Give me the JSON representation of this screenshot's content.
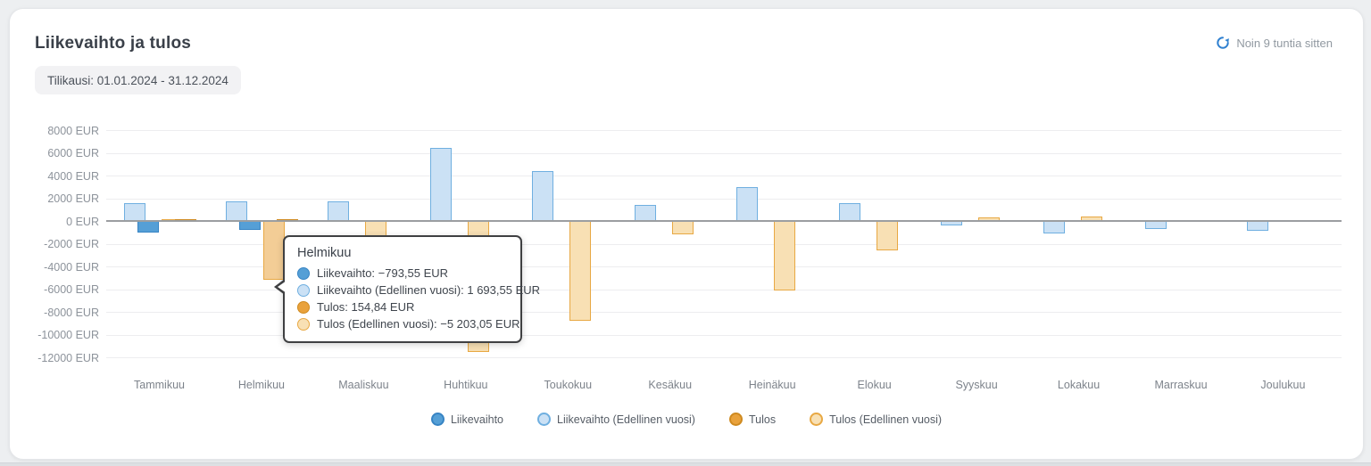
{
  "card": {
    "title": "Liikevaihto ja tulos",
    "period_chip": "Tilikausi: 01.01.2024 - 31.12.2024",
    "updated_text": "Noin 9 tuntia sitten"
  },
  "colors": {
    "liikevaihto_fill": "#559fd6",
    "liikevaihto_border": "#3784c4",
    "liikevaihto_prev_fill": "#cbe1f5",
    "liikevaihto_prev_border": "#6fafe0",
    "tulos_fill": "#e9a23c",
    "tulos_border": "#cf8a20",
    "tulos_prev_fill": "#f8e0b4",
    "tulos_prev_border": "#e8a843",
    "tulos_prev_hover_fill": "#f3cd96",
    "accent_blue": "#2f80d0",
    "zero_line": "#9b9ea1",
    "grid_line": "#ededef"
  },
  "chart_data": {
    "type": "bar",
    "title": "Liikevaihto ja tulos",
    "unit": "EUR",
    "grid": true,
    "legend_position": "bottom",
    "ylim": [
      -12000,
      8000
    ],
    "y_step": 2000,
    "y_tick_suffix": " EUR",
    "categories": [
      "Tammikuu",
      "Helmikuu",
      "Maaliskuu",
      "Huhtikuu",
      "Toukokuu",
      "Kesäkuu",
      "Heinäkuu",
      "Elokuu",
      "Syyskuu",
      "Lokakuu",
      "Marraskuu",
      "Joulukuu"
    ],
    "series": [
      {
        "name": "Liikevaihto",
        "key": "liikevaihto",
        "values": [
          -1050,
          -793.55,
          null,
          null,
          null,
          null,
          null,
          null,
          null,
          null,
          null,
          null
        ]
      },
      {
        "name": "Liikevaihto (Edellinen vuosi)",
        "key": "liikevaihto_prev",
        "values": [
          1550,
          1693.55,
          1700,
          6400,
          4400,
          1400,
          3000,
          1550,
          -420,
          -1080,
          -740,
          -900
        ]
      },
      {
        "name": "Tulos",
        "key": "tulos",
        "values": [
          150,
          154.84,
          null,
          null,
          null,
          null,
          null,
          null,
          null,
          null,
          null,
          null
        ]
      },
      {
        "name": "Tulos (Edellinen vuosi)",
        "key": "tulos_prev",
        "values": [
          160,
          -5203.05,
          -2500,
          -11500,
          -8800,
          -1150,
          -6100,
          -2600,
          340,
          390,
          80,
          null
        ]
      }
    ],
    "highlighted_month_index": 1
  },
  "tooltip": {
    "title": "Helmikuu",
    "rows": [
      {
        "key": "liikevaihto",
        "text": "Liikevaihto: −793,55 EUR"
      },
      {
        "key": "liikevaihto_prev",
        "text": "Liikevaihto (Edellinen vuosi): 1 693,55 EUR"
      },
      {
        "key": "tulos",
        "text": "Tulos: 154,84 EUR"
      },
      {
        "key": "tulos_prev",
        "text": "Tulos (Edellinen vuosi): −5 203,05 EUR"
      }
    ]
  }
}
